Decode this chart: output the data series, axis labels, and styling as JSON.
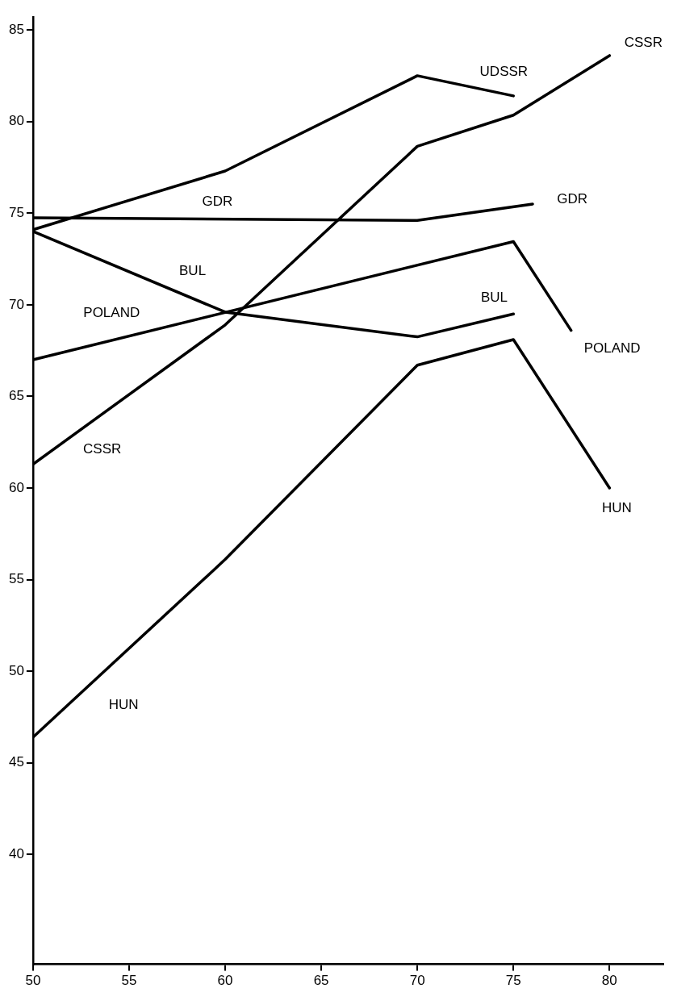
{
  "chart_data": {
    "type": "line",
    "xlim": [
      50,
      82.8
    ],
    "xticks": [
      50,
      55,
      60,
      65,
      70,
      75,
      80
    ],
    "ylim": [
      34,
      85.7
    ],
    "yticks": [
      40,
      45,
      50,
      55,
      60,
      65,
      70,
      75,
      80,
      85
    ],
    "grid": false,
    "legend": false,
    "marker": "none",
    "line_style": "solid",
    "series": [
      {
        "name": "UDSSR",
        "color": "#000000",
        "x": [
          50,
          60,
          70,
          75
        ],
        "values": [
          74.1,
          77.3,
          82.5,
          81.4
        ]
      },
      {
        "name": "GDR",
        "color": "#000000",
        "x": [
          50,
          70,
          76
        ],
        "values": [
          74.75,
          74.6,
          75.5
        ]
      },
      {
        "name": "BUL",
        "color": "#000000",
        "x": [
          50,
          60,
          70,
          75
        ],
        "values": [
          74.0,
          69.6,
          68.25,
          69.5
        ]
      },
      {
        "name": "POLAND",
        "color": "#000000",
        "x": [
          50,
          75,
          78
        ],
        "values": [
          67.0,
          73.45,
          68.6
        ]
      },
      {
        "name": "CSSR",
        "color": "#000000",
        "x": [
          50,
          60,
          70,
          75,
          80
        ],
        "values": [
          61.3,
          68.9,
          78.65,
          80.35,
          83.6
        ]
      },
      {
        "name": "HUN",
        "color": "#000000",
        "x": [
          50,
          60,
          70,
          75,
          80
        ],
        "values": [
          46.4,
          56.1,
          66.7,
          68.1,
          60.0
        ]
      }
    ]
  }
}
